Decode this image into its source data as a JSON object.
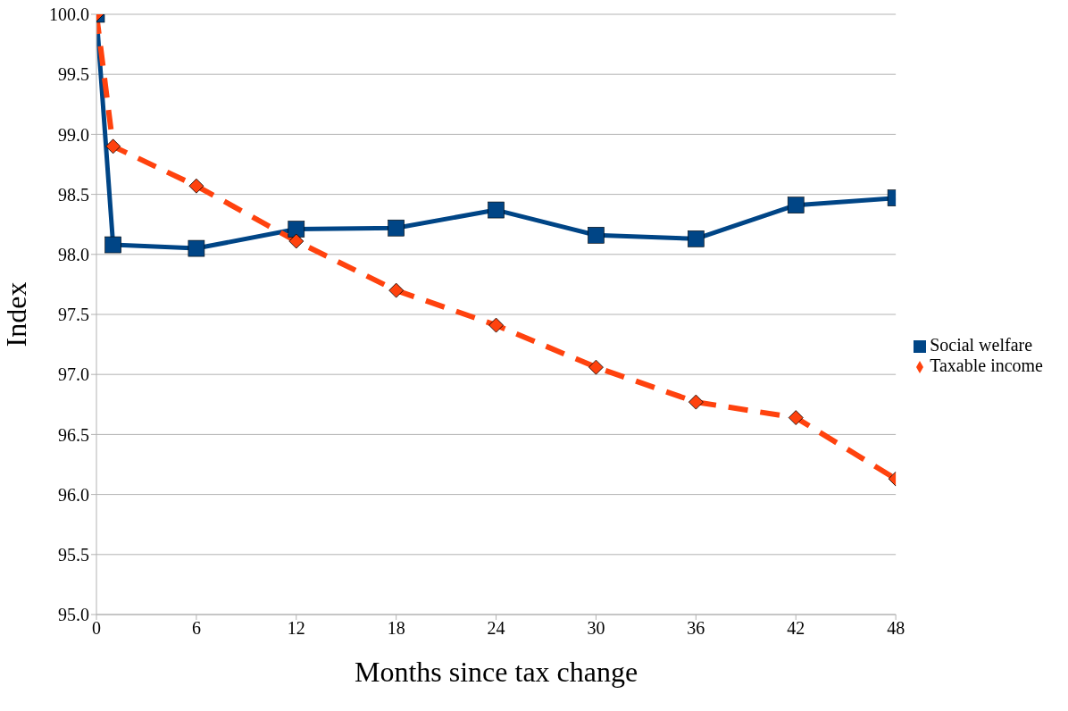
{
  "chart_data": {
    "type": "line",
    "xlabel": "Months since tax change",
    "ylabel": "Index",
    "xlim": [
      0,
      48
    ],
    "xticks": [
      0,
      6,
      12,
      18,
      24,
      30,
      36,
      42,
      48
    ],
    "ylim": [
      95,
      100
    ],
    "yticks": [
      {
        "value": 95,
        "label": "95.0"
      },
      {
        "value": 95.5,
        "label": "95.5"
      },
      {
        "value": 96,
        "label": "96.0"
      },
      {
        "value": 96.5,
        "label": "96.5"
      },
      {
        "value": 97,
        "label": "97.0"
      },
      {
        "value": 97.5,
        "label": "97.5"
      },
      {
        "value": 98,
        "label": "98.0"
      },
      {
        "value": 98.5,
        "label": "98.5"
      },
      {
        "value": 99,
        "label": "99.0"
      },
      {
        "value": 99.5,
        "label": "99.5"
      },
      {
        "value": 100,
        "label": "100.0"
      }
    ],
    "grid": "y",
    "legend": "right",
    "series": [
      {
        "name": "Social welfare",
        "color": "#004586",
        "marker": "square",
        "line_style": "solid",
        "x": [
          0,
          1,
          6,
          12,
          18,
          24,
          30,
          36,
          42,
          48
        ],
        "values": [
          100.0,
          98.08,
          98.05,
          98.21,
          98.22,
          98.37,
          98.16,
          98.13,
          98.41,
          98.47
        ]
      },
      {
        "name": "Taxable income",
        "color": "#ff420e",
        "marker": "diamond",
        "line_style": "dashed",
        "x": [
          0,
          1,
          6,
          12,
          18,
          24,
          30,
          36,
          42,
          48
        ],
        "values": [
          100.0,
          98.9,
          98.57,
          98.11,
          97.7,
          97.41,
          97.06,
          96.77,
          96.64,
          96.13
        ]
      }
    ]
  }
}
